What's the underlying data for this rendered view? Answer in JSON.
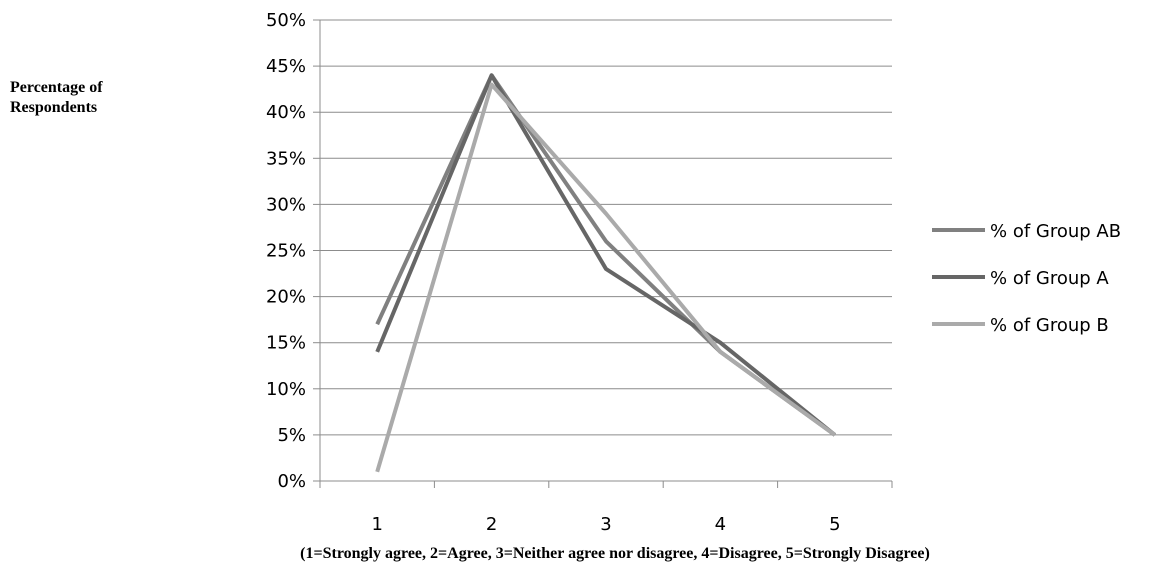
{
  "chart_data": {
    "type": "line",
    "title": "",
    "xlabel": "(1=Strongly agree, 2=Agree, 3=Neither agree nor disagree, 4=Disagree, 5=Strongly Disagree)",
    "ylabel": "Percentage of\nRespondents",
    "categories": [
      "1",
      "2",
      "3",
      "4",
      "5"
    ],
    "y_ticks": [
      "0%",
      "5%",
      "10%",
      "15%",
      "20%",
      "25%",
      "30%",
      "35%",
      "40%",
      "45%",
      "50%"
    ],
    "ylim": [
      0,
      50
    ],
    "grid": true,
    "legend_position": "right",
    "series": [
      {
        "name": "% of Group AB",
        "values": [
          17,
          44,
          26,
          14,
          5
        ],
        "color": "#808080"
      },
      {
        "name": "% of Group A",
        "values": [
          14,
          44,
          23,
          15,
          5
        ],
        "color": "#666666"
      },
      {
        "name": "% of Group B",
        "values": [
          1,
          43,
          29,
          14,
          5
        ],
        "color": "#aaaaaa"
      }
    ]
  }
}
